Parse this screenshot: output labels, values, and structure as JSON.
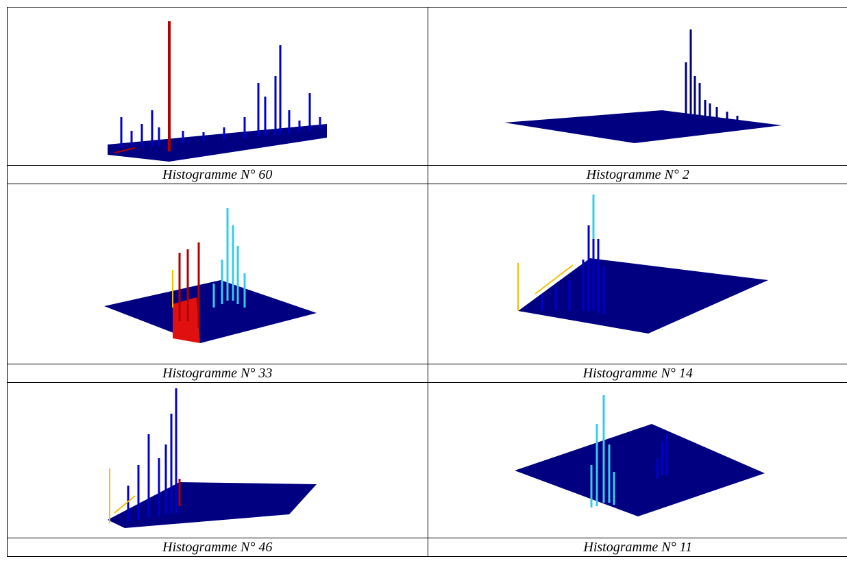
{
  "captions": [
    "Histogramme N° 60",
    "Histogramme N° 2",
    "Histogramme N° 33",
    "Histogramme N° 14",
    "Histogramme N° 46",
    "Histogramme N° 11"
  ],
  "colors": {
    "plane": "#000080",
    "blue": "#0000cc",
    "cyan": "#33ccee",
    "red": "#b00000",
    "bright_red": "#e01010",
    "yellow": "#f0c000",
    "grid_line": "#000000"
  }
}
